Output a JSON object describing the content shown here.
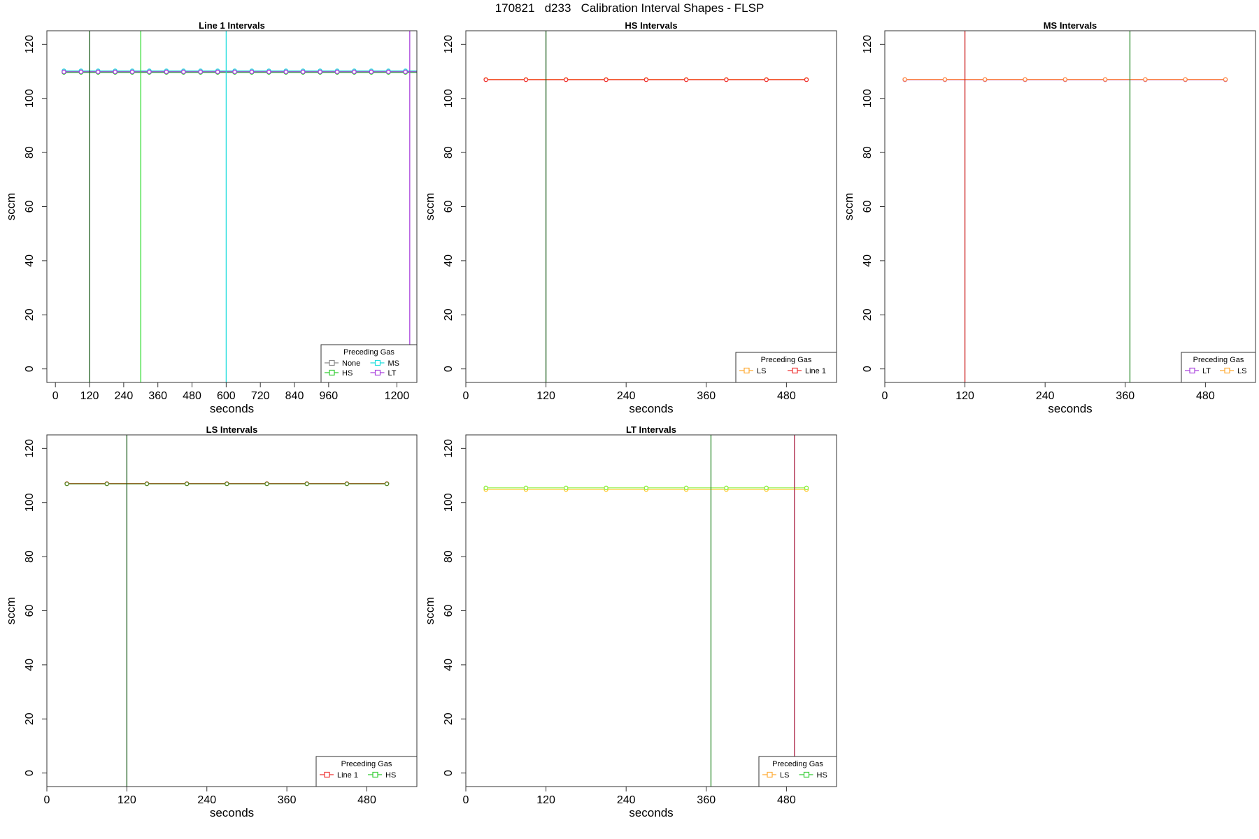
{
  "figure": {
    "title": "170821   d233   Calibration Interval Shapes - FLSP"
  },
  "chart_data": [
    {
      "type": "line",
      "title": "Line 1 Intervals",
      "xlabel": "seconds",
      "ylabel": "sccm",
      "xlim": [
        -30,
        1270
      ],
      "ylim": [
        -5,
        125
      ],
      "xticks": [
        0,
        120,
        240,
        360,
        480,
        600,
        720,
        840,
        960,
        1200
      ],
      "yticks": [
        0,
        20,
        40,
        60,
        80,
        100,
        120
      ],
      "grid": false,
      "legend": {
        "title": "Preceding Gas",
        "position": "bottom-right",
        "columns": 2,
        "entries": [
          {
            "label": "None",
            "color": "#888888"
          },
          {
            "label": "MS",
            "color": "#22dddd"
          },
          {
            "label": "HS",
            "color": "#33cc33"
          },
          {
            "label": "LT",
            "color": "#aa44dd"
          }
        ]
      },
      "vlines": [
        {
          "x": 120,
          "color": "#1f5f1f"
        },
        {
          "x": 300,
          "color": "#33dd33"
        },
        {
          "x": 600,
          "color": "#22dddd"
        },
        {
          "x": 1245,
          "color": "#aa44dd"
        }
      ],
      "series": [
        {
          "name": "None",
          "color": "#888888",
          "x": [
            30,
            90,
            150,
            210,
            270,
            330,
            390,
            450,
            510,
            570,
            630,
            690,
            750,
            810,
            870,
            930,
            990,
            1050,
            1110,
            1170,
            1230,
            1290
          ],
          "y": [
            110,
            110,
            110,
            110,
            110,
            110,
            110,
            110,
            110,
            110,
            110,
            110,
            110,
            110,
            110,
            110,
            110,
            110,
            110,
            110,
            110,
            110
          ]
        },
        {
          "name": "HS",
          "color": "#33cc33",
          "x": [
            30,
            90,
            150,
            210,
            270,
            330,
            390,
            450,
            510,
            570,
            630,
            690,
            750,
            810,
            870,
            930,
            990,
            1050,
            1110,
            1170,
            1230,
            1290
          ],
          "y": [
            109.6,
            109.6,
            109.6,
            109.6,
            109.6,
            109.6,
            109.6,
            109.6,
            109.6,
            109.6,
            109.6,
            109.6,
            109.6,
            109.6,
            109.6,
            109.6,
            109.6,
            109.6,
            109.6,
            109.6,
            109.6,
            109.6
          ]
        },
        {
          "name": "MS",
          "color": "#22dddd",
          "x": [
            30,
            90,
            150,
            210,
            270,
            330,
            390,
            450,
            510,
            570,
            630,
            690,
            750,
            810,
            870,
            930,
            990,
            1050,
            1110,
            1170,
            1230,
            1290
          ],
          "y": [
            110.2,
            110.2,
            110.2,
            110.2,
            110.2,
            110.2,
            110.2,
            110.2,
            110.2,
            110.2,
            110.2,
            110.2,
            110.2,
            110.2,
            110.2,
            110.2,
            110.2,
            110.2,
            110.2,
            110.2,
            110.2,
            110.2
          ]
        },
        {
          "name": "LT",
          "color": "#aa44dd",
          "x": [
            30,
            90,
            150,
            210,
            270,
            330,
            390,
            450,
            510,
            570,
            630,
            690,
            750,
            810,
            870,
            930,
            990,
            1050,
            1110,
            1170,
            1230,
            1290
          ],
          "y": [
            109.8,
            109.8,
            109.8,
            109.8,
            109.8,
            109.8,
            109.8,
            109.8,
            109.8,
            109.8,
            109.8,
            109.8,
            109.8,
            109.8,
            109.8,
            109.8,
            109.8,
            109.8,
            109.8,
            109.8,
            109.8,
            109.8
          ]
        }
      ]
    },
    {
      "type": "line",
      "title": "HS Intervals",
      "xlabel": "seconds",
      "ylabel": "sccm",
      "xlim": [
        0,
        555
      ],
      "ylim": [
        -5,
        125
      ],
      "xticks": [
        0,
        120,
        240,
        360,
        480
      ],
      "yticks": [
        0,
        20,
        40,
        60,
        80,
        100,
        120
      ],
      "grid": false,
      "legend": {
        "title": "Preceding Gas",
        "position": "bottom-right",
        "columns": 2,
        "entries": [
          {
            "label": "LS",
            "color": "#ffaa33"
          },
          {
            "label": "Line 1",
            "color": "#ee3333"
          }
        ]
      },
      "vlines": [
        {
          "x": 120,
          "color": "#1f5f1f"
        }
      ],
      "series": [
        {
          "name": "LS",
          "color": "#ffaa33",
          "x": [
            30,
            90,
            150,
            210,
            270,
            330,
            390,
            450,
            510
          ],
          "y": [
            107,
            107,
            107,
            107,
            107,
            107,
            107,
            107,
            107
          ]
        },
        {
          "name": "Line 1",
          "color": "#ee3333",
          "x": [
            30,
            90,
            150,
            210,
            270,
            330,
            390,
            450,
            510
          ],
          "y": [
            106.9,
            106.9,
            106.9,
            106.9,
            106.9,
            106.9,
            106.9,
            106.9,
            106.9
          ]
        }
      ]
    },
    {
      "type": "line",
      "title": "MS Intervals",
      "xlabel": "seconds",
      "ylabel": "sccm",
      "xlim": [
        0,
        555
      ],
      "ylim": [
        -5,
        125
      ],
      "xticks": [
        0,
        120,
        240,
        360,
        480
      ],
      "yticks": [
        0,
        20,
        40,
        60,
        80,
        100,
        120
      ],
      "grid": false,
      "legend": {
        "title": "Preceding Gas",
        "position": "bottom-right",
        "columns": 2,
        "entries": [
          {
            "label": "LT",
            "color": "#aa44dd"
          },
          {
            "label": "LS",
            "color": "#ffaa33"
          }
        ]
      },
      "vlines": [
        {
          "x": 120,
          "color": "#cc2222"
        },
        {
          "x": 367,
          "color": "#2e8b2e"
        }
      ],
      "series": [
        {
          "name": "LT",
          "color": "#aa44dd",
          "x": [
            30,
            90,
            150,
            210,
            270,
            330,
            390,
            450,
            510
          ],
          "y": [
            106.9,
            106.9,
            106.9,
            106.9,
            106.9,
            106.9,
            106.9,
            106.9,
            106.9
          ]
        },
        {
          "name": "LS",
          "color": "#ff8844",
          "x": [
            30,
            90,
            150,
            210,
            270,
            330,
            390,
            450,
            510
          ],
          "y": [
            107,
            107,
            107,
            107,
            107,
            107,
            107,
            107,
            107
          ]
        }
      ]
    },
    {
      "type": "line",
      "title": "LS Intervals",
      "xlabel": "seconds",
      "ylabel": "sccm",
      "xlim": [
        0,
        555
      ],
      "ylim": [
        -5,
        125
      ],
      "xticks": [
        0,
        120,
        240,
        360,
        480
      ],
      "yticks": [
        0,
        20,
        40,
        60,
        80,
        100,
        120
      ],
      "grid": false,
      "legend": {
        "title": "Preceding Gas",
        "position": "bottom-right",
        "columns": 2,
        "entries": [
          {
            "label": "Line 1",
            "color": "#ee3333"
          },
          {
            "label": "HS",
            "color": "#33cc33"
          }
        ]
      },
      "vlines": [
        {
          "x": 120,
          "color": "#1f5f1f"
        }
      ],
      "series": [
        {
          "name": "Line 1",
          "color": "#ee3333",
          "x": [
            30,
            90,
            150,
            210,
            270,
            330,
            390,
            450,
            510
          ],
          "y": [
            107,
            107,
            107,
            107,
            107,
            107,
            107,
            107,
            107
          ]
        },
        {
          "name": "HS",
          "color": "#558822",
          "x": [
            30,
            90,
            150,
            210,
            270,
            330,
            390,
            450,
            510
          ],
          "y": [
            106.9,
            106.9,
            106.9,
            106.9,
            106.9,
            106.9,
            106.9,
            106.9,
            106.9
          ]
        }
      ]
    },
    {
      "type": "line",
      "title": "LT Intervals",
      "xlabel": "seconds",
      "ylabel": "sccm",
      "xlim": [
        0,
        555
      ],
      "ylim": [
        -5,
        125
      ],
      "xticks": [
        0,
        120,
        240,
        360,
        480
      ],
      "yticks": [
        0,
        20,
        40,
        60,
        80,
        100,
        120
      ],
      "grid": false,
      "legend": {
        "title": "Preceding Gas",
        "position": "bottom-right",
        "columns": 2,
        "entries": [
          {
            "label": "LS",
            "color": "#ffaa33"
          },
          {
            "label": "HS",
            "color": "#33cc33"
          }
        ]
      },
      "vlines": [
        {
          "x": 367,
          "color": "#2e8b2e"
        },
        {
          "x": 492,
          "color": "#aa2244"
        }
      ],
      "series": [
        {
          "name": "LS",
          "color": "#ffcc33",
          "x": [
            30,
            90,
            150,
            210,
            270,
            330,
            390,
            450,
            510
          ],
          "y": [
            104.8,
            104.8,
            104.8,
            104.8,
            104.8,
            104.8,
            104.8,
            104.8,
            104.8
          ]
        },
        {
          "name": "HS",
          "color": "#88ee33",
          "x": [
            30,
            90,
            150,
            210,
            270,
            330,
            390,
            450,
            510
          ],
          "y": [
            105.4,
            105.4,
            105.4,
            105.4,
            105.4,
            105.4,
            105.4,
            105.4,
            105.4
          ]
        }
      ]
    }
  ]
}
